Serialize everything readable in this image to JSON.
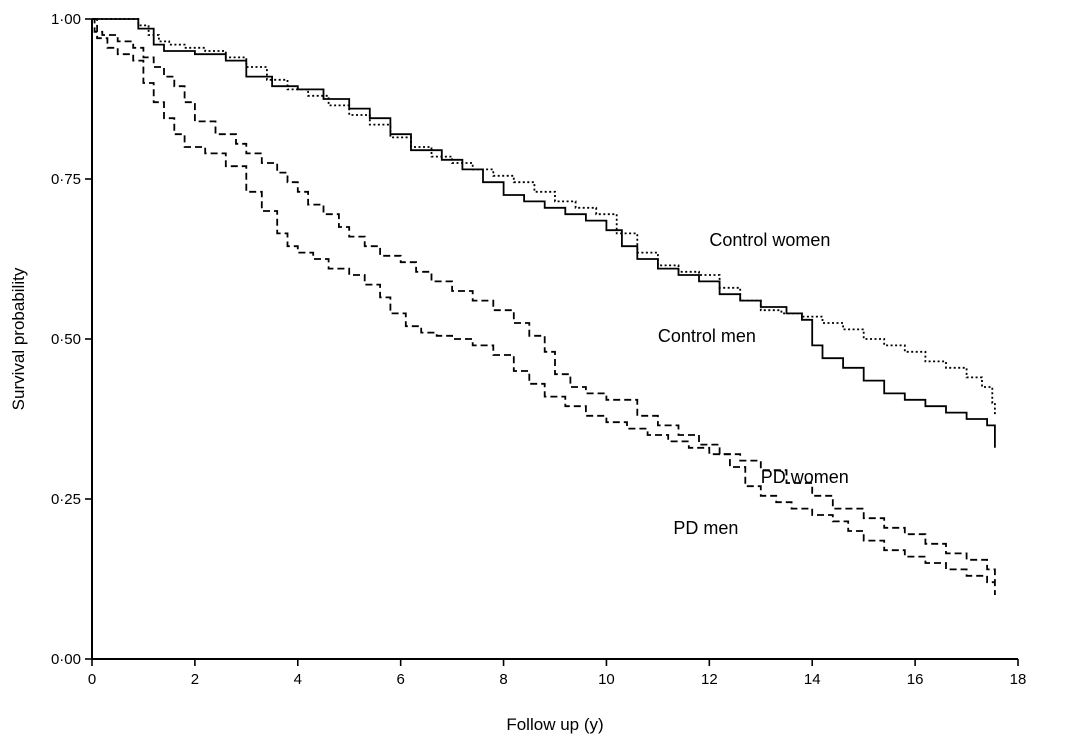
{
  "chart_data": {
    "type": "line",
    "step": true,
    "title": "",
    "xlabel": "Follow up (y)",
    "ylabel": "Survival probability",
    "xlim": [
      0,
      18
    ],
    "ylim": [
      0,
      1
    ],
    "xticks": [
      0,
      2,
      4,
      6,
      8,
      10,
      12,
      14,
      16,
      18
    ],
    "xtick_labels": [
      "0",
      "2",
      "4",
      "6",
      "8",
      "10",
      "12",
      "14",
      "16",
      "18"
    ],
    "yticks": [
      0,
      0.25,
      0.5,
      0.75,
      1.0
    ],
    "ytick_labels": [
      "0·00",
      "0·25",
      "0·50",
      "0·75",
      "1·00"
    ],
    "grid": false,
    "legend": "none (series labeled inline)",
    "series": [
      {
        "name": "Control women",
        "line_style": "dotted",
        "label_pos": [
          12.0,
          0.645
        ],
        "x": [
          0,
          0.9,
          1.1,
          1.3,
          1.5,
          1.8,
          2.2,
          2.6,
          3.0,
          3.4,
          3.8,
          4.2,
          4.6,
          5.0,
          5.4,
          5.8,
          6.2,
          6.6,
          7.0,
          7.4,
          7.8,
          8.2,
          8.6,
          9.0,
          9.4,
          9.8,
          10.2,
          10.6,
          11.0,
          11.4,
          11.8,
          12.2,
          12.6,
          13.0,
          13.4,
          13.8,
          14.2,
          14.6,
          15.0,
          15.4,
          15.8,
          16.2,
          16.6,
          17.0,
          17.3,
          17.5,
          17.55
        ],
        "y": [
          1.0,
          0.99,
          0.975,
          0.965,
          0.96,
          0.955,
          0.95,
          0.94,
          0.925,
          0.905,
          0.89,
          0.88,
          0.865,
          0.85,
          0.835,
          0.815,
          0.8,
          0.785,
          0.775,
          0.765,
          0.755,
          0.745,
          0.73,
          0.715,
          0.705,
          0.695,
          0.665,
          0.635,
          0.615,
          0.605,
          0.6,
          0.58,
          0.56,
          0.545,
          0.54,
          0.535,
          0.525,
          0.515,
          0.5,
          0.49,
          0.48,
          0.465,
          0.455,
          0.44,
          0.425,
          0.4,
          0.38
        ]
      },
      {
        "name": "Control men",
        "line_style": "solid",
        "label_pos": [
          11.0,
          0.495
        ],
        "x": [
          0,
          0.9,
          1.2,
          1.4,
          2.0,
          2.6,
          3.0,
          3.5,
          4.0,
          4.5,
          5.0,
          5.4,
          5.8,
          6.2,
          6.8,
          7.2,
          7.6,
          8.0,
          8.4,
          8.8,
          9.2,
          9.6,
          10.0,
          10.3,
          10.6,
          11.0,
          11.4,
          11.8,
          12.2,
          12.6,
          13.0,
          13.5,
          13.8,
          14.0,
          14.2,
          14.6,
          15.0,
          15.4,
          15.8,
          16.2,
          16.6,
          17.0,
          17.4,
          17.55
        ],
        "y": [
          1.0,
          0.985,
          0.96,
          0.95,
          0.945,
          0.935,
          0.91,
          0.895,
          0.89,
          0.875,
          0.86,
          0.845,
          0.82,
          0.795,
          0.78,
          0.765,
          0.745,
          0.725,
          0.715,
          0.705,
          0.695,
          0.685,
          0.67,
          0.645,
          0.625,
          0.61,
          0.6,
          0.59,
          0.57,
          0.56,
          0.55,
          0.54,
          0.53,
          0.49,
          0.47,
          0.455,
          0.435,
          0.415,
          0.405,
          0.395,
          0.385,
          0.375,
          0.365,
          0.33
        ]
      },
      {
        "name": "PD women",
        "line_style": "dashed",
        "label_pos": [
          13.0,
          0.275
        ],
        "x": [
          0,
          0.05,
          0.2,
          0.5,
          0.8,
          1.0,
          1.2,
          1.4,
          1.6,
          1.8,
          2.0,
          2.4,
          2.8,
          3.0,
          3.3,
          3.6,
          3.8,
          4.0,
          4.2,
          4.5,
          4.8,
          5.0,
          5.3,
          5.6,
          6.0,
          6.3,
          6.6,
          7.0,
          7.4,
          7.8,
          8.2,
          8.5,
          8.8,
          9.0,
          9.3,
          9.6,
          10.0,
          10.6,
          11.0,
          11.4,
          11.8,
          12.2,
          12.6,
          13.0,
          13.5,
          14.0,
          14.4,
          15.0,
          15.4,
          15.8,
          16.2,
          16.6,
          17.0,
          17.4,
          17.55
        ],
        "y": [
          1.0,
          0.98,
          0.975,
          0.965,
          0.955,
          0.94,
          0.925,
          0.91,
          0.895,
          0.87,
          0.84,
          0.82,
          0.805,
          0.79,
          0.775,
          0.76,
          0.745,
          0.73,
          0.71,
          0.695,
          0.675,
          0.66,
          0.645,
          0.63,
          0.62,
          0.605,
          0.59,
          0.575,
          0.56,
          0.545,
          0.525,
          0.505,
          0.48,
          0.445,
          0.425,
          0.415,
          0.405,
          0.38,
          0.365,
          0.35,
          0.335,
          0.32,
          0.31,
          0.295,
          0.275,
          0.255,
          0.235,
          0.22,
          0.205,
          0.195,
          0.18,
          0.165,
          0.155,
          0.14,
          0.1
        ]
      },
      {
        "name": "PD men",
        "line_style": "dashed",
        "label_pos": [
          11.3,
          0.195
        ],
        "x": [
          0,
          0.1,
          0.3,
          0.5,
          0.8,
          1.0,
          1.2,
          1.4,
          1.6,
          1.8,
          2.2,
          2.6,
          3.0,
          3.3,
          3.6,
          3.8,
          4.0,
          4.3,
          4.6,
          5.0,
          5.3,
          5.6,
          5.8,
          6.1,
          6.4,
          6.7,
          7.0,
          7.4,
          7.8,
          8.2,
          8.5,
          8.8,
          9.2,
          9.6,
          10.0,
          10.4,
          10.8,
          11.2,
          11.6,
          12.0,
          12.4,
          12.7,
          13.0,
          13.3,
          13.6,
          14.0,
          14.4,
          14.7,
          15.0,
          15.4,
          15.8,
          16.2,
          16.6,
          17.0,
          17.4,
          17.55
        ],
        "y": [
          1.0,
          0.97,
          0.955,
          0.945,
          0.935,
          0.9,
          0.87,
          0.845,
          0.82,
          0.8,
          0.79,
          0.77,
          0.73,
          0.7,
          0.665,
          0.645,
          0.635,
          0.625,
          0.61,
          0.6,
          0.585,
          0.565,
          0.54,
          0.52,
          0.51,
          0.505,
          0.5,
          0.49,
          0.475,
          0.45,
          0.43,
          0.41,
          0.395,
          0.38,
          0.37,
          0.36,
          0.35,
          0.34,
          0.33,
          0.32,
          0.3,
          0.27,
          0.255,
          0.245,
          0.235,
          0.225,
          0.215,
          0.2,
          0.185,
          0.17,
          0.16,
          0.15,
          0.14,
          0.13,
          0.12,
          0.12
        ]
      }
    ]
  }
}
